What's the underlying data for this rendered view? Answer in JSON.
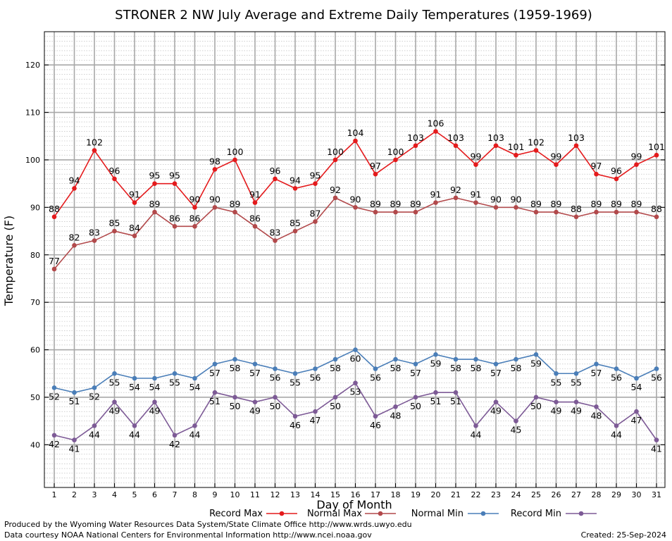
{
  "chart_data": {
    "type": "line",
    "title": "STRONER 2 NW July Average and Extreme Daily Temperatures (1959-1969)",
    "xlabel": "Day of Month",
    "ylabel": "Temperature (F)",
    "ylim": [
      31,
      127
    ],
    "yticks": [
      40,
      50,
      60,
      70,
      80,
      90,
      100,
      110,
      120
    ],
    "x": [
      1,
      2,
      3,
      4,
      5,
      6,
      7,
      8,
      9,
      10,
      11,
      12,
      13,
      14,
      15,
      16,
      17,
      18,
      19,
      20,
      21,
      22,
      23,
      24,
      25,
      26,
      27,
      28,
      29,
      30,
      31
    ],
    "grid": true,
    "legend": "bottom",
    "series": [
      {
        "name": "Record Max",
        "color": "#e41a1c",
        "values": [
          88,
          94,
          102,
          96,
          91,
          95,
          95,
          90,
          98,
          100,
          91,
          96,
          94,
          95,
          100,
          104,
          97,
          100,
          103,
          106,
          103,
          99,
          103,
          101,
          102,
          99,
          103,
          97,
          96,
          99,
          101
        ]
      },
      {
        "name": "Normal Max",
        "color": "#b2494b",
        "values": [
          77,
          82,
          83,
          85,
          84,
          89,
          86,
          86,
          90,
          89,
          86,
          83,
          85,
          87,
          92,
          90,
          89,
          89,
          89,
          91,
          92,
          91,
          90,
          90,
          89,
          89,
          88,
          89,
          89,
          89,
          88
        ]
      },
      {
        "name": "Normal Min",
        "color": "#4a7eb8",
        "values": [
          52,
          51,
          52,
          55,
          54,
          54,
          55,
          54,
          57,
          58,
          57,
          56,
          55,
          56,
          58,
          60,
          56,
          58,
          57,
          59,
          58,
          58,
          57,
          58,
          59,
          55,
          55,
          57,
          56,
          54,
          56
        ]
      },
      {
        "name": "Record Min",
        "color": "#7d5a96",
        "values": [
          42,
          41,
          44,
          49,
          44,
          49,
          42,
          44,
          51,
          50,
          49,
          50,
          46,
          47,
          50,
          53,
          46,
          48,
          50,
          51,
          51,
          44,
          49,
          45,
          50,
          49,
          49,
          48,
          44,
          47,
          41
        ]
      }
    ]
  },
  "footer": {
    "line1": "Produced by the Wyoming Water Resources Data System/State Climate Office http://www.wrds.uwyo.edu",
    "line2": "Data courtesy NOAA National Centers for Environmental Information http://www.ncei.noaa.gov",
    "created": "Created:  25-Sep-2024"
  }
}
